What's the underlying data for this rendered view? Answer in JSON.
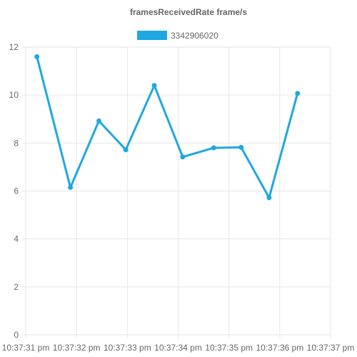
{
  "chart_data": {
    "type": "line",
    "title": "framesReceivedRate frame/s",
    "x_tick_labels": [
      "10:37:31 pm",
      "10:37:32 pm",
      "10:37:33 pm",
      "10:37:34 pm",
      "10:37:35 pm",
      "10:37:36 pm",
      "10:37:37 pm"
    ],
    "xlim": [
      0,
      6
    ],
    "ylim": [
      0,
      12
    ],
    "y_ticks": [
      0,
      2,
      4,
      6,
      8,
      10,
      12
    ],
    "grid": true,
    "legend_position": "top",
    "series": [
      {
        "name": "3342906020",
        "color": "#1fa7e1",
        "x": [
          0.22,
          0.88,
          1.44,
          1.97,
          2.53,
          3.09,
          3.7,
          4.24,
          4.79,
          5.35
        ],
        "y": [
          11.6,
          6.15,
          8.92,
          7.72,
          10.4,
          7.42,
          7.8,
          7.82,
          5.72,
          10.07
        ]
      }
    ]
  }
}
